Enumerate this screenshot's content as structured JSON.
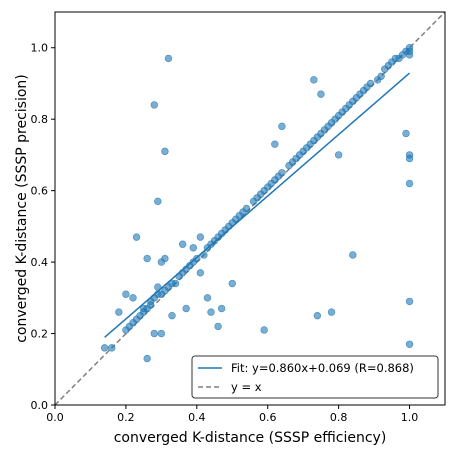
{
  "chart_data": {
    "type": "scatter",
    "title": "",
    "xlabel": "converged K-distance (SSSP efficiency)",
    "ylabel": "converged K-distance (SSSP precision)",
    "xlim": [
      0.0,
      1.1
    ],
    "ylim": [
      0.0,
      1.1
    ],
    "xticks": [
      "0.0",
      "0.2",
      "0.4",
      "0.6",
      "0.8",
      "1.0"
    ],
    "yticks": [
      "0.0",
      "0.2",
      "0.4",
      "0.6",
      "0.8",
      "1.0"
    ],
    "xtick_values": [
      0.0,
      0.2,
      0.4,
      0.6,
      0.8,
      1.0
    ],
    "ytick_values": [
      0.0,
      0.2,
      0.4,
      0.6,
      0.8,
      1.0
    ],
    "grid": false,
    "legend_position": "lower-right",
    "colors": {
      "points": "#1f77b4",
      "fit": "#1f77b4",
      "identity": "#7f7f7f"
    },
    "series": [
      {
        "type": "scatter",
        "points": [
          [
            0.14,
            0.16
          ],
          [
            0.16,
            0.16
          ],
          [
            0.18,
            0.26
          ],
          [
            0.2,
            0.31
          ],
          [
            0.2,
            0.21
          ],
          [
            0.21,
            0.22
          ],
          [
            0.22,
            0.23
          ],
          [
            0.22,
            0.3
          ],
          [
            0.23,
            0.24
          ],
          [
            0.23,
            0.47
          ],
          [
            0.24,
            0.25
          ],
          [
            0.25,
            0.26
          ],
          [
            0.25,
            0.27
          ],
          [
            0.26,
            0.13
          ],
          [
            0.26,
            0.27
          ],
          [
            0.26,
            0.41
          ],
          [
            0.27,
            0.28
          ],
          [
            0.27,
            0.29
          ],
          [
            0.28,
            0.2
          ],
          [
            0.28,
            0.84
          ],
          [
            0.28,
            0.3
          ],
          [
            0.29,
            0.57
          ],
          [
            0.29,
            0.31
          ],
          [
            0.29,
            0.33
          ],
          [
            0.3,
            0.2
          ],
          [
            0.3,
            0.4
          ],
          [
            0.3,
            0.31
          ],
          [
            0.31,
            0.71
          ],
          [
            0.31,
            0.41
          ],
          [
            0.31,
            0.32
          ],
          [
            0.32,
            0.33
          ],
          [
            0.32,
            0.97
          ],
          [
            0.33,
            0.34
          ],
          [
            0.33,
            0.25
          ],
          [
            0.34,
            0.34
          ],
          [
            0.35,
            0.36
          ],
          [
            0.36,
            0.45
          ],
          [
            0.36,
            0.37
          ],
          [
            0.37,
            0.38
          ],
          [
            0.37,
            0.27
          ],
          [
            0.38,
            0.39
          ],
          [
            0.39,
            0.4
          ],
          [
            0.39,
            0.44
          ],
          [
            0.4,
            0.41
          ],
          [
            0.41,
            0.37
          ],
          [
            0.41,
            0.47
          ],
          [
            0.42,
            0.42
          ],
          [
            0.43,
            0.3
          ],
          [
            0.43,
            0.44
          ],
          [
            0.44,
            0.45
          ],
          [
            0.44,
            0.26
          ],
          [
            0.45,
            0.46
          ],
          [
            0.46,
            0.47
          ],
          [
            0.46,
            0.22
          ],
          [
            0.47,
            0.48
          ],
          [
            0.47,
            0.27
          ],
          [
            0.48,
            0.49
          ],
          [
            0.49,
            0.5
          ],
          [
            0.5,
            0.51
          ],
          [
            0.5,
            0.34
          ],
          [
            0.51,
            0.52
          ],
          [
            0.52,
            0.53
          ],
          [
            0.53,
            0.54
          ],
          [
            0.54,
            0.55
          ],
          [
            0.56,
            0.57
          ],
          [
            0.57,
            0.58
          ],
          [
            0.58,
            0.59
          ],
          [
            0.59,
            0.6
          ],
          [
            0.59,
            0.21
          ],
          [
            0.6,
            0.61
          ],
          [
            0.61,
            0.62
          ],
          [
            0.62,
            0.73
          ],
          [
            0.62,
            0.63
          ],
          [
            0.63,
            0.64
          ],
          [
            0.64,
            0.78
          ],
          [
            0.64,
            0.65
          ],
          [
            0.66,
            0.67
          ],
          [
            0.67,
            0.68
          ],
          [
            0.68,
            0.69
          ],
          [
            0.69,
            0.7
          ],
          [
            0.7,
            0.71
          ],
          [
            0.71,
            0.72
          ],
          [
            0.72,
            0.73
          ],
          [
            0.73,
            0.91
          ],
          [
            0.73,
            0.74
          ],
          [
            0.74,
            0.25
          ],
          [
            0.74,
            0.75
          ],
          [
            0.75,
            0.87
          ],
          [
            0.75,
            0.76
          ],
          [
            0.76,
            0.77
          ],
          [
            0.77,
            0.78
          ],
          [
            0.78,
            0.26
          ],
          [
            0.78,
            0.79
          ],
          [
            0.79,
            0.8
          ],
          [
            0.8,
            0.7
          ],
          [
            0.8,
            0.81
          ],
          [
            0.81,
            0.82
          ],
          [
            0.82,
            0.83
          ],
          [
            0.83,
            0.84
          ],
          [
            0.84,
            0.42
          ],
          [
            0.84,
            0.85
          ],
          [
            0.85,
            0.86
          ],
          [
            0.86,
            0.87
          ],
          [
            0.87,
            0.88
          ],
          [
            0.88,
            0.89
          ],
          [
            0.89,
            0.9
          ],
          [
            0.91,
            0.91
          ],
          [
            0.92,
            0.92
          ],
          [
            0.93,
            0.94
          ],
          [
            0.94,
            0.95
          ],
          [
            0.95,
            0.96
          ],
          [
            0.96,
            0.97
          ],
          [
            0.97,
            0.97
          ],
          [
            0.98,
            0.98
          ],
          [
            0.99,
            0.99
          ],
          [
            0.99,
            0.76
          ],
          [
            1.0,
            1.0
          ],
          [
            1.0,
            0.99
          ],
          [
            1.0,
            0.98
          ],
          [
            1.0,
            0.7
          ],
          [
            1.0,
            0.69
          ],
          [
            1.0,
            0.62
          ],
          [
            1.0,
            0.29
          ],
          [
            1.0,
            0.17
          ]
        ]
      },
      {
        "type": "line",
        "name": "Fit: y=0.860x+0.069 (R=0.868)",
        "slope": 0.86,
        "intercept": 0.069,
        "x_range": [
          0.14,
          1.0
        ]
      },
      {
        "type": "line",
        "name": "y = x",
        "style": "dashed",
        "slope": 1.0,
        "intercept": 0.0,
        "x_range": [
          0.0,
          1.1
        ]
      }
    ]
  }
}
